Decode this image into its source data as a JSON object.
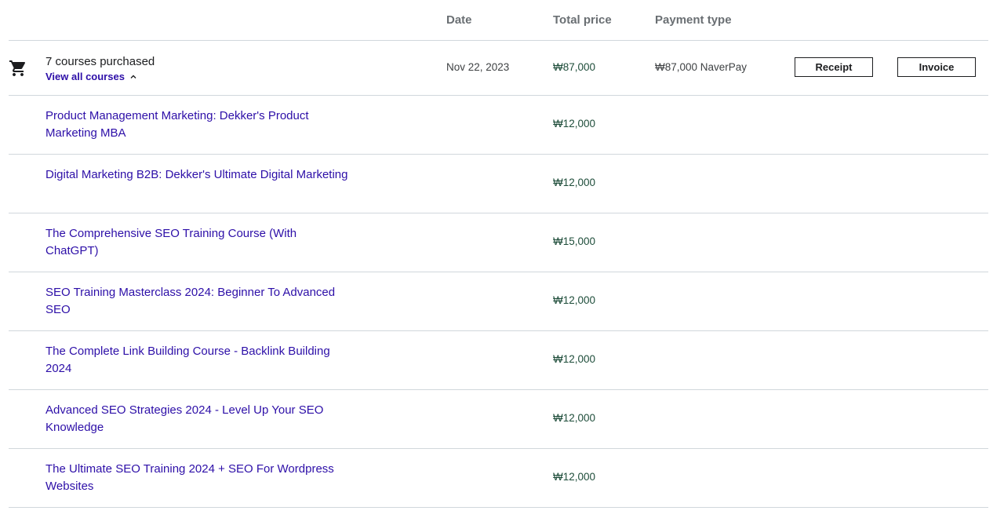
{
  "header": {
    "date_label": "Date",
    "price_label": "Total price",
    "payment_label": "Payment type"
  },
  "summary": {
    "icon": "shopping-cart-icon",
    "title": "7 courses purchased",
    "view_all_label": "View all courses",
    "date": "Nov 22, 2023",
    "total_price": "₩87,000",
    "payment": "₩87,000 NaverPay",
    "receipt_label": "Receipt",
    "invoice_label": "Invoice"
  },
  "courses": [
    {
      "title": "Product Management Marketing: Dekker's Product Marketing MBA",
      "price": "₩12,000"
    },
    {
      "title": "Digital Marketing B2B: Dekker's Ultimate Digital Marketing",
      "price": "₩12,000"
    },
    {
      "title": "The Comprehensive SEO Training Course (With ChatGPT)",
      "price": "₩15,000"
    },
    {
      "title": "SEO Training Masterclass 2024: Beginner To Advanced SEO",
      "price": "₩12,000"
    },
    {
      "title": "The Complete Link Building Course - Backlink Building 2024",
      "price": "₩12,000"
    },
    {
      "title": "Advanced SEO Strategies 2024 - Level Up Your SEO Knowledge",
      "price": "₩12,000"
    },
    {
      "title": "The Ultimate SEO Training 2024 + SEO For Wordpress Websites",
      "price": "₩12,000"
    }
  ],
  "colors": {
    "link": "#2d0fa8",
    "price": "#1e4d3a",
    "border": "#d1d7dc"
  }
}
